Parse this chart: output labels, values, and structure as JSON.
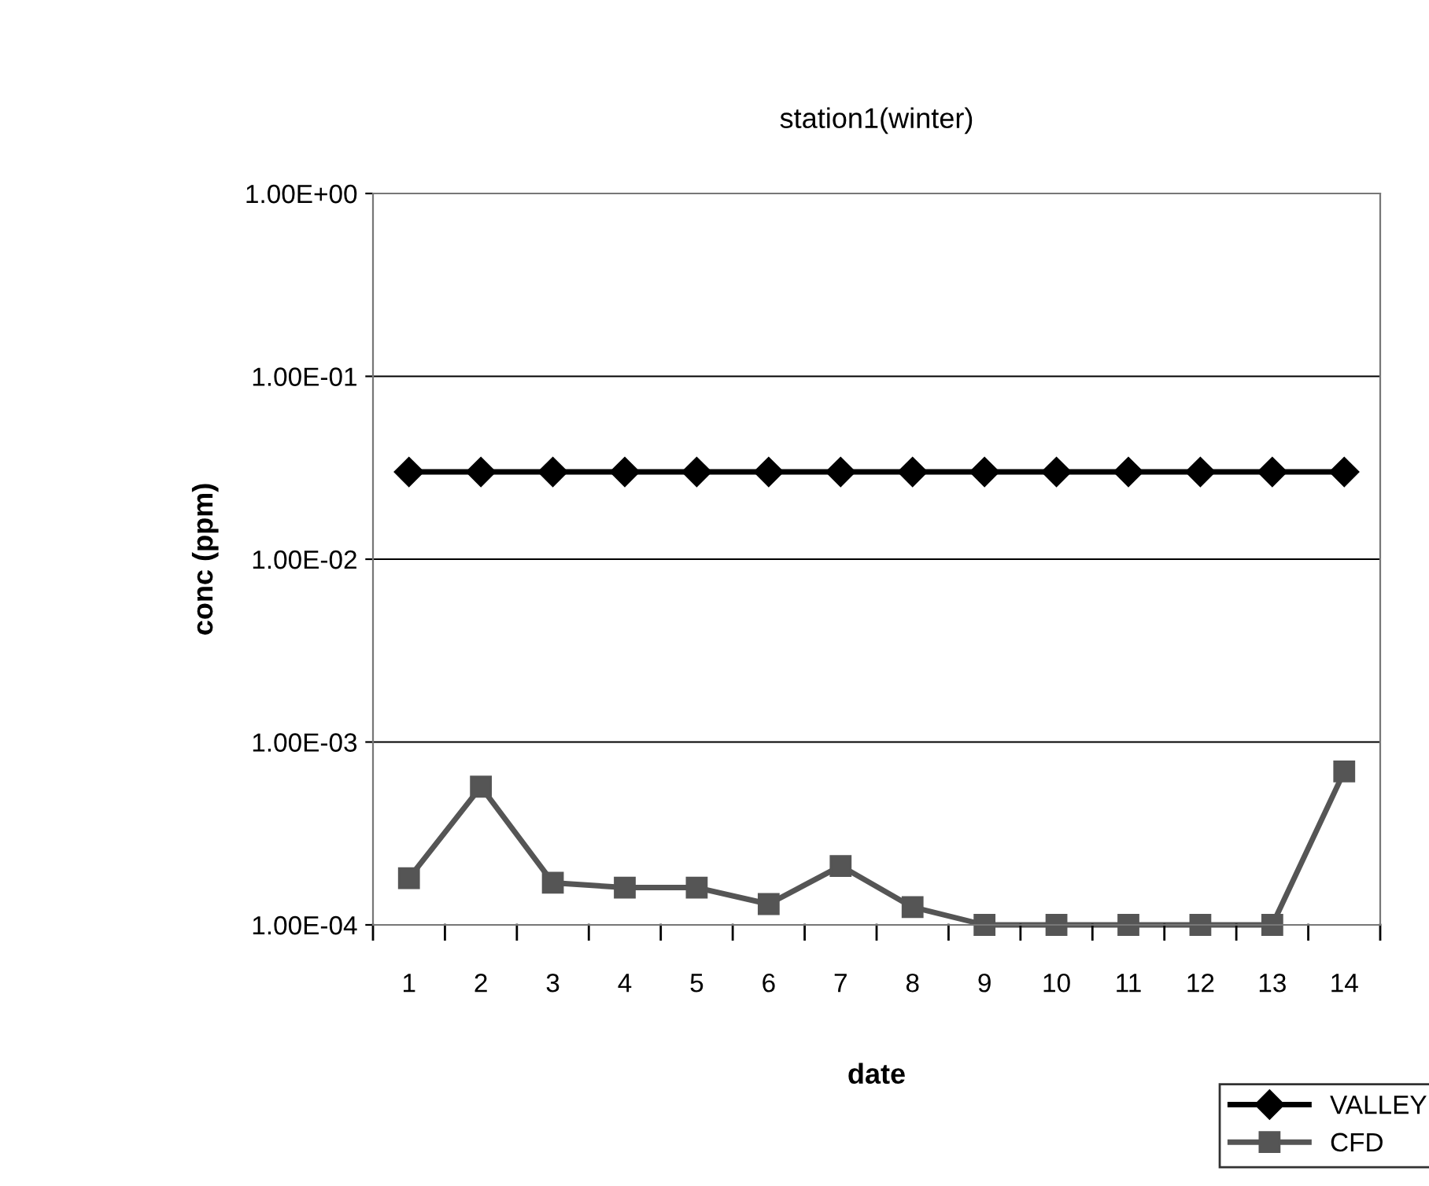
{
  "chart_data": {
    "type": "line",
    "title": "station1(winter)",
    "xlabel": "date",
    "ylabel": "conc (ppm)",
    "categories": [
      "1",
      "2",
      "3",
      "4",
      "5",
      "6",
      "7",
      "8",
      "9",
      "10",
      "11",
      "12",
      "13",
      "14"
    ],
    "series": [
      {
        "name": "VALLEY",
        "color": "#000000",
        "marker": "diamond",
        "values": [
          0.03,
          0.03,
          0.03,
          0.03,
          0.03,
          0.03,
          0.03,
          0.03,
          0.03,
          0.03,
          0.03,
          0.03,
          0.03,
          0.03
        ]
      },
      {
        "name": "CFD",
        "color": "#555555",
        "marker": "square",
        "values": [
          0.00018,
          0.00057,
          0.00017,
          0.00016,
          0.00016,
          0.00013,
          0.00021,
          0.000125,
          0.0001,
          0.0001,
          0.0001,
          0.0001,
          0.0001,
          0.00069
        ]
      }
    ],
    "log": "y",
    "ylim": [
      0.0001,
      1
    ],
    "yticks": [
      {
        "value": 0.0001,
        "label": "1.00E-04"
      },
      {
        "value": 0.001,
        "label": "1.00E-03"
      },
      {
        "value": 0.01,
        "label": "1.00E-02"
      },
      {
        "value": 0.1,
        "label": "1.00E-01"
      },
      {
        "value": 1,
        "label": "1.00E+00"
      }
    ],
    "grid": "y",
    "legend": "bottom right",
    "line_style": "solid"
  }
}
